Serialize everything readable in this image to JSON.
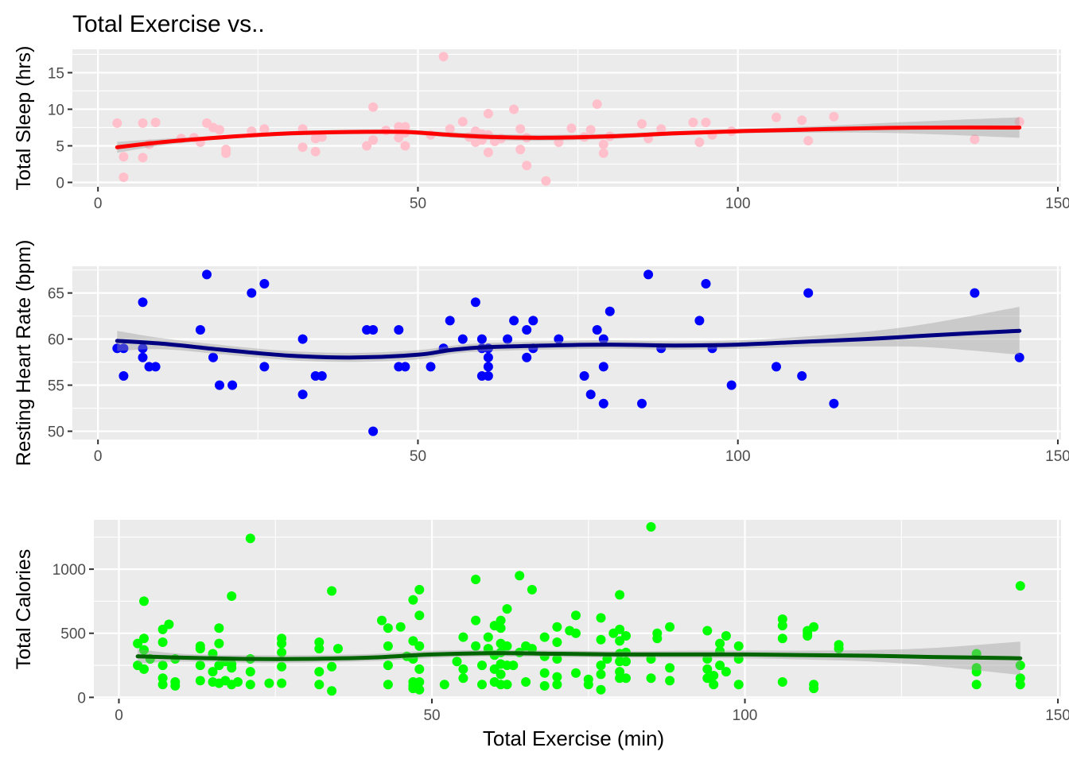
{
  "title": "Total Exercise vs..",
  "x_axis_title": "Total Exercise (min)",
  "chart_data": [
    {
      "type": "scatter",
      "ylabel": "Total Sleep (hrs)",
      "xlim": [
        -4,
        150.5
      ],
      "ylim": [
        -0.6,
        18.2
      ],
      "xticks": [
        0,
        50,
        100,
        150
      ],
      "yticks": [
        0,
        5,
        10,
        15
      ],
      "grid": true,
      "point_color": "#ffc0cb",
      "smooth_color": "#ff0000",
      "points": [
        [
          3,
          8.1
        ],
        [
          4,
          3.5
        ],
        [
          4,
          0.7
        ],
        [
          7,
          8.1
        ],
        [
          7,
          3.4
        ],
        [
          8,
          5.2
        ],
        [
          9,
          8.2
        ],
        [
          13,
          6
        ],
        [
          15,
          6.1
        ],
        [
          16,
          5.5
        ],
        [
          17,
          8.1
        ],
        [
          18,
          7.5
        ],
        [
          19,
          7.2
        ],
        [
          20,
          4.5
        ],
        [
          20,
          4
        ],
        [
          24,
          7
        ],
        [
          26,
          7.3
        ],
        [
          32,
          7.3
        ],
        [
          32,
          4.8
        ],
        [
          34,
          6
        ],
        [
          34,
          4.2
        ],
        [
          35,
          6.2
        ],
        [
          42,
          5
        ],
        [
          43,
          5.8
        ],
        [
          43,
          10.3
        ],
        [
          45,
          7.1
        ],
        [
          47,
          7.6
        ],
        [
          47,
          6.1
        ],
        [
          48,
          6.8
        ],
        [
          48,
          7.6
        ],
        [
          48,
          5
        ],
        [
          52,
          6.5
        ],
        [
          54,
          17.2
        ],
        [
          55,
          7.3
        ],
        [
          57,
          8.3
        ],
        [
          58,
          6.2
        ],
        [
          59,
          7
        ],
        [
          59,
          5.5
        ],
        [
          60,
          6.6
        ],
        [
          60,
          5.8
        ],
        [
          61,
          9.4
        ],
        [
          61,
          4.1
        ],
        [
          61,
          6.5
        ],
        [
          62,
          5.6
        ],
        [
          63,
          6
        ],
        [
          65,
          10
        ],
        [
          66,
          7.3
        ],
        [
          66,
          4.5
        ],
        [
          67,
          2.3
        ],
        [
          67,
          6.1
        ],
        [
          70,
          0.2
        ],
        [
          72,
          5.5
        ],
        [
          74,
          7.4
        ],
        [
          76,
          6.2
        ],
        [
          77,
          7.2
        ],
        [
          78,
          10.7
        ],
        [
          79,
          5.2
        ],
        [
          79,
          4
        ],
        [
          80,
          6.3
        ],
        [
          85,
          8
        ],
        [
          86,
          6
        ],
        [
          88,
          7.3
        ],
        [
          93,
          8.2
        ],
        [
          94,
          5.5
        ],
        [
          95,
          8.2
        ],
        [
          96,
          6.5
        ],
        [
          99,
          7
        ],
        [
          106,
          8.9
        ],
        [
          110,
          8.5
        ],
        [
          111,
          5.7
        ],
        [
          115,
          9
        ],
        [
          137,
          5.9
        ],
        [
          144,
          8.3
        ]
      ],
      "smooth": [
        [
          3,
          4.8
        ],
        [
          10,
          5.5
        ],
        [
          20,
          6.2
        ],
        [
          30,
          6.7
        ],
        [
          40,
          6.9
        ],
        [
          48,
          6.9
        ],
        [
          55,
          6.5
        ],
        [
          62,
          6.2
        ],
        [
          70,
          6.1
        ],
        [
          80,
          6.3
        ],
        [
          90,
          6.7
        ],
        [
          100,
          7
        ],
        [
          110,
          7.2
        ],
        [
          120,
          7.4
        ],
        [
          130,
          7.5
        ],
        [
          144,
          7.5
        ]
      ],
      "band": [
        0.75,
        0.45,
        0.25,
        0.3,
        0.3,
        0.3,
        0.35,
        0.4,
        0.4,
        0.35,
        0.3,
        0.3,
        0.4,
        0.6,
        0.9,
        1.4
      ]
    },
    {
      "type": "scatter",
      "ylabel": "Resting Heart Rate (bpm)",
      "xlim": [
        -4,
        150.5
      ],
      "ylim": [
        49.1,
        67.9
      ],
      "xticks": [
        0,
        50,
        100,
        150
      ],
      "yticks": [
        50,
        55,
        60,
        65
      ],
      "grid": true,
      "point_color": "#0000ff",
      "smooth_color": "#000080",
      "points": [
        [
          3,
          59
        ],
        [
          4,
          59
        ],
        [
          4,
          56
        ],
        [
          7,
          59
        ],
        [
          7,
          58
        ],
        [
          7,
          64
        ],
        [
          8,
          57
        ],
        [
          9,
          57
        ],
        [
          16,
          61
        ],
        [
          17,
          67
        ],
        [
          18,
          58
        ],
        [
          19,
          55
        ],
        [
          21,
          55
        ],
        [
          24,
          65
        ],
        [
          26,
          66
        ],
        [
          26,
          57
        ],
        [
          32,
          60
        ],
        [
          32,
          54
        ],
        [
          34,
          56
        ],
        [
          35,
          56
        ],
        [
          42,
          61
        ],
        [
          43,
          61
        ],
        [
          43,
          50
        ],
        [
          47,
          61
        ],
        [
          47,
          57
        ],
        [
          48,
          57
        ],
        [
          52,
          57
        ],
        [
          54,
          59
        ],
        [
          55,
          62
        ],
        [
          57,
          60
        ],
        [
          59,
          64
        ],
        [
          60,
          56
        ],
        [
          60,
          60
        ],
        [
          60,
          59
        ],
        [
          61,
          58
        ],
        [
          61,
          57
        ],
        [
          61,
          56
        ],
        [
          61,
          59
        ],
        [
          64,
          60
        ],
        [
          65,
          62
        ],
        [
          67,
          61
        ],
        [
          67,
          58
        ],
        [
          68,
          62
        ],
        [
          68,
          59
        ],
        [
          72,
          60
        ],
        [
          76,
          56
        ],
        [
          77,
          54
        ],
        [
          78,
          61
        ],
        [
          79,
          60
        ],
        [
          79,
          57
        ],
        [
          79,
          53
        ],
        [
          80,
          63
        ],
        [
          85,
          53
        ],
        [
          86,
          67
        ],
        [
          88,
          59
        ],
        [
          94,
          62
        ],
        [
          95,
          66
        ],
        [
          96,
          59
        ],
        [
          99,
          55
        ],
        [
          106,
          57
        ],
        [
          110,
          56
        ],
        [
          111,
          65
        ],
        [
          115,
          53
        ],
        [
          137,
          65
        ],
        [
          144,
          58
        ]
      ],
      "smooth": [
        [
          3,
          59.8
        ],
        [
          10,
          59.5
        ],
        [
          20,
          58.8
        ],
        [
          30,
          58.2
        ],
        [
          40,
          58
        ],
        [
          50,
          58.3
        ],
        [
          55,
          58.8
        ],
        [
          60,
          59.1
        ],
        [
          70,
          59.3
        ],
        [
          80,
          59.4
        ],
        [
          90,
          59.3
        ],
        [
          100,
          59.4
        ],
        [
          110,
          59.7
        ],
        [
          120,
          60
        ],
        [
          130,
          60.4
        ],
        [
          144,
          60.9
        ]
      ],
      "band": [
        1.1,
        0.6,
        0.5,
        0.5,
        0.5,
        0.5,
        0.45,
        0.45,
        0.45,
        0.45,
        0.45,
        0.45,
        0.55,
        0.8,
        1.3,
        2.6
      ]
    },
    {
      "type": "scatter",
      "ylabel": "Total Calories",
      "xlim": [
        -4,
        150.5
      ],
      "ylim": [
        -10,
        1385
      ],
      "xticks": [
        0,
        50,
        100,
        150
      ],
      "yticks": [
        0,
        500,
        1000
      ],
      "grid": true,
      "point_color": "#00ff00",
      "smooth_color": "#006400",
      "points": [
        [
          3,
          420
        ],
        [
          3,
          250
        ],
        [
          4,
          460
        ],
        [
          4,
          370
        ],
        [
          4,
          220
        ],
        [
          4,
          750
        ],
        [
          5,
          300
        ],
        [
          7,
          530
        ],
        [
          7,
          430
        ],
        [
          7,
          250
        ],
        [
          7,
          100
        ],
        [
          7,
          150
        ],
        [
          8,
          570
        ],
        [
          9,
          300
        ],
        [
          9,
          120
        ],
        [
          9,
          90
        ],
        [
          13,
          400
        ],
        [
          13,
          380
        ],
        [
          13,
          250
        ],
        [
          13,
          130
        ],
        [
          15,
          340
        ],
        [
          15,
          200
        ],
        [
          15,
          120
        ],
        [
          16,
          540
        ],
        [
          16,
          420
        ],
        [
          16,
          250
        ],
        [
          16,
          110
        ],
        [
          17,
          280
        ],
        [
          17,
          130
        ],
        [
          18,
          230
        ],
        [
          18,
          100
        ],
        [
          18,
          260
        ],
        [
          18,
          790
        ],
        [
          19,
          120
        ],
        [
          21,
          300
        ],
        [
          21,
          200
        ],
        [
          21,
          100
        ],
        [
          21,
          1240
        ],
        [
          24,
          110
        ],
        [
          26,
          460
        ],
        [
          26,
          420
        ],
        [
          26,
          350
        ],
        [
          26,
          240
        ],
        [
          26,
          110
        ],
        [
          32,
          430
        ],
        [
          32,
          380
        ],
        [
          32,
          200
        ],
        [
          32,
          100
        ],
        [
          34,
          830
        ],
        [
          34,
          240
        ],
        [
          34,
          50
        ],
        [
          35,
          380
        ],
        [
          42,
          600
        ],
        [
          43,
          540
        ],
        [
          43,
          400
        ],
        [
          43,
          250
        ],
        [
          43,
          100
        ],
        [
          45,
          550
        ],
        [
          46,
          320
        ],
        [
          47,
          760
        ],
        [
          47,
          440
        ],
        [
          47,
          300
        ],
        [
          47,
          120
        ],
        [
          47,
          90
        ],
        [
          47,
          70
        ],
        [
          48,
          840
        ],
        [
          48,
          640
        ],
        [
          48,
          400
        ],
        [
          48,
          220
        ],
        [
          48,
          120
        ],
        [
          48,
          60
        ],
        [
          52,
          100
        ],
        [
          54,
          280
        ],
        [
          55,
          470
        ],
        [
          55,
          220
        ],
        [
          55,
          150
        ],
        [
          57,
          920
        ],
        [
          57,
          600
        ],
        [
          57,
          400
        ],
        [
          58,
          250
        ],
        [
          58,
          100
        ],
        [
          59,
          470
        ],
        [
          59,
          380
        ],
        [
          60,
          560
        ],
        [
          60,
          330
        ],
        [
          60,
          220
        ],
        [
          60,
          120
        ],
        [
          61,
          600
        ],
        [
          61,
          540
        ],
        [
          61,
          420
        ],
        [
          61,
          350
        ],
        [
          61,
          260
        ],
        [
          61,
          180
        ],
        [
          61,
          100
        ],
        [
          62,
          690
        ],
        [
          62,
          400
        ],
        [
          62,
          250
        ],
        [
          62,
          100
        ],
        [
          63,
          250
        ],
        [
          64,
          950
        ],
        [
          64,
          350
        ],
        [
          65,
          400
        ],
        [
          65,
          120
        ],
        [
          66,
          840
        ],
        [
          66,
          380
        ],
        [
          68,
          470
        ],
        [
          68,
          320
        ],
        [
          68,
          190
        ],
        [
          68,
          90
        ],
        [
          70,
          550
        ],
        [
          70,
          430
        ],
        [
          70,
          300
        ],
        [
          70,
          160
        ],
        [
          70,
          100
        ],
        [
          72,
          520
        ],
        [
          73,
          640
        ],
        [
          73,
          500
        ],
        [
          73,
          190
        ],
        [
          75,
          140
        ],
        [
          75,
          100
        ],
        [
          77,
          620
        ],
        [
          77,
          450
        ],
        [
          77,
          250
        ],
        [
          77,
          180
        ],
        [
          77,
          60
        ],
        [
          78,
          300
        ],
        [
          79,
          500
        ],
        [
          80,
          800
        ],
        [
          80,
          530
        ],
        [
          80,
          440
        ],
        [
          80,
          340
        ],
        [
          80,
          280
        ],
        [
          80,
          200
        ],
        [
          80,
          150
        ],
        [
          81,
          480
        ],
        [
          81,
          350
        ],
        [
          81,
          280
        ],
        [
          81,
          150
        ],
        [
          85,
          1330
        ],
        [
          85,
          300
        ],
        [
          85,
          150
        ],
        [
          86,
          500
        ],
        [
          86,
          460
        ],
        [
          88,
          550
        ],
        [
          88,
          230
        ],
        [
          88,
          130
        ],
        [
          94,
          520
        ],
        [
          94,
          300
        ],
        [
          94,
          220
        ],
        [
          94,
          150
        ],
        [
          95,
          170
        ],
        [
          95,
          100
        ],
        [
          96,
          420
        ],
        [
          96,
          360
        ],
        [
          96,
          250
        ],
        [
          97,
          480
        ],
        [
          97,
          200
        ],
        [
          99,
          400
        ],
        [
          99,
          300
        ],
        [
          99,
          100
        ],
        [
          106,
          610
        ],
        [
          106,
          560
        ],
        [
          106,
          460
        ],
        [
          106,
          120
        ],
        [
          110,
          520
        ],
        [
          110,
          500
        ],
        [
          110,
          480
        ],
        [
          111,
          550
        ],
        [
          111,
          100
        ],
        [
          111,
          70
        ],
        [
          115,
          410
        ],
        [
          115,
          380
        ],
        [
          137,
          340
        ],
        [
          137,
          230
        ],
        [
          137,
          200
        ],
        [
          137,
          100
        ],
        [
          144,
          870
        ],
        [
          144,
          250
        ],
        [
          144,
          150
        ],
        [
          144,
          100
        ]
      ],
      "smooth": [
        [
          3,
          320
        ],
        [
          10,
          310
        ],
        [
          20,
          300
        ],
        [
          30,
          300
        ],
        [
          40,
          310
        ],
        [
          50,
          335
        ],
        [
          60,
          345
        ],
        [
          70,
          340
        ],
        [
          80,
          335
        ],
        [
          90,
          335
        ],
        [
          100,
          335
        ],
        [
          110,
          330
        ],
        [
          120,
          325
        ],
        [
          130,
          315
        ],
        [
          144,
          305
        ]
      ],
      "band": [
        55,
        30,
        30,
        30,
        28,
        28,
        25,
        25,
        25,
        28,
        30,
        35,
        45,
        70,
        130
      ]
    }
  ]
}
